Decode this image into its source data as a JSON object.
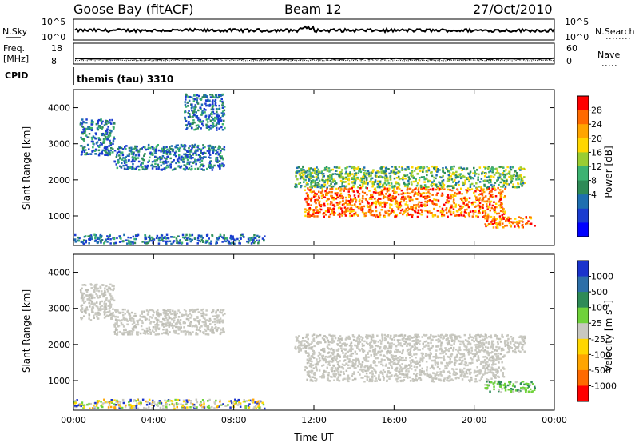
{
  "header": {
    "station": "Goose Bay (fitACF)",
    "beam": "Beam 12",
    "date": "27/Oct/2010"
  },
  "strip_panels": {
    "nsky_label": "N.Sky",
    "nsearch_label": "N.Search",
    "nsky_ticks": [
      "10^5",
      "10^0"
    ],
    "nsearch_ticks": [
      "10^5",
      "10^0"
    ],
    "freq_label_line1": "Freq.",
    "freq_label_line2": "[MHz]",
    "freq_ticks": [
      "18",
      "8"
    ],
    "nave_label": "Nave",
    "nave_ticks": [
      "60",
      "0"
    ],
    "cpid_label": "CPID",
    "cpid_value": "themis (tau) 3310"
  },
  "chart_data": [
    {
      "type": "heatmap",
      "title": "",
      "xlabel": "",
      "ylabel": "Slant Range [km]",
      "xlim": [
        0,
        24
      ],
      "ylim": [
        180,
        4500
      ],
      "x_ticks": [
        "00:00",
        "04:00",
        "08:00",
        "12:00",
        "16:00",
        "20:00",
        "00:00"
      ],
      "y_ticks": [
        1000,
        2000,
        3000,
        4000
      ],
      "colorbar": {
        "label": "Power [dB]",
        "ticks": [
          "28",
          "24",
          "20",
          "16",
          "12",
          "8",
          "4"
        ],
        "colors": [
          "#ff0000",
          "#ff6a00",
          "#ffa500",
          "#ffd700",
          "#9acd32",
          "#3cb371",
          "#2e8b57",
          "#1e6fb0",
          "#1a3cd0",
          "#0000ff"
        ]
      },
      "scatter_regions": [
        {
          "t0": 0.0,
          "t1": 9.5,
          "r0": 250,
          "r1": 500,
          "level": "weak"
        },
        {
          "t0": 0.3,
          "t1": 2.0,
          "r0": 2700,
          "r1": 3700,
          "level": "weak"
        },
        {
          "t0": 2.0,
          "t1": 7.5,
          "r0": 2300,
          "r1": 3000,
          "level": "weak"
        },
        {
          "t0": 5.5,
          "t1": 7.5,
          "r0": 3400,
          "r1": 4400,
          "level": "weak"
        },
        {
          "t0": 11.0,
          "t1": 22.5,
          "r0": 1800,
          "r1": 2400,
          "level": "medium"
        },
        {
          "t0": 11.5,
          "t1": 21.5,
          "r0": 1000,
          "r1": 1800,
          "level": "strong"
        },
        {
          "t0": 20.5,
          "t1": 23.0,
          "r0": 700,
          "r1": 1000,
          "level": "strong"
        }
      ]
    },
    {
      "type": "heatmap",
      "title": "",
      "xlabel": "Time UT",
      "ylabel": "Slant Range [km]",
      "xlim": [
        0,
        24
      ],
      "ylim": [
        180,
        4500
      ],
      "x_ticks": [
        "00:00",
        "04:00",
        "08:00",
        "12:00",
        "16:00",
        "20:00",
        "00:00"
      ],
      "y_ticks": [
        1000,
        2000,
        3000,
        4000
      ],
      "colorbar": {
        "label": "Velocity [m s",
        "label_sup": "-1",
        "label_end": "]",
        "ticks": [
          "1000",
          "500",
          "100",
          "25",
          "-25",
          "-100",
          "-500",
          "-1000"
        ],
        "colors": [
          "#1a33cc",
          "#2d6fa8",
          "#2e8b57",
          "#6fd23a",
          "#c8c8c0",
          "#ffd700",
          "#ffa500",
          "#ff6a00",
          "#ff0000"
        ]
      },
      "scatter_regions": [
        {
          "t0": 0.0,
          "t1": 9.5,
          "r0": 250,
          "r1": 500,
          "level": "mixed"
        },
        {
          "t0": 0.3,
          "t1": 2.0,
          "r0": 2700,
          "r1": 3700,
          "level": "ground"
        },
        {
          "t0": 2.0,
          "t1": 7.5,
          "r0": 2300,
          "r1": 3000,
          "level": "ground"
        },
        {
          "t0": 11.0,
          "t1": 22.5,
          "r0": 1800,
          "r1": 2300,
          "level": "ground"
        },
        {
          "t0": 11.5,
          "t1": 21.5,
          "r0": 1000,
          "r1": 1800,
          "level": "ground"
        },
        {
          "t0": 20.5,
          "t1": 23.0,
          "r0": 700,
          "r1": 1000,
          "level": "green"
        }
      ]
    }
  ]
}
